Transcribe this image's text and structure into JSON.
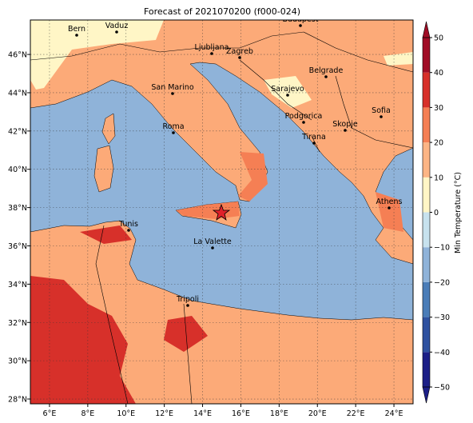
{
  "header": {
    "title": "Forecast of 2021070200 (f000-024)"
  },
  "map": {
    "xlim": [
      5,
      25
    ],
    "ylim": [
      27.75,
      47.8
    ],
    "xticks": [
      {
        "value": 6,
        "label": "6°E"
      },
      {
        "value": 8,
        "label": "8°E"
      },
      {
        "value": 10,
        "label": "10°E"
      },
      {
        "value": 12,
        "label": "12°E"
      },
      {
        "value": 14,
        "label": "14°E"
      },
      {
        "value": 16,
        "label": "16°E"
      },
      {
        "value": 18,
        "label": "18°E"
      },
      {
        "value": 20,
        "label": "20°E"
      },
      {
        "value": 22,
        "label": "22°E"
      },
      {
        "value": 24,
        "label": "24°E"
      }
    ],
    "yticks": [
      {
        "value": 28,
        "label": "28°N"
      },
      {
        "value": 30,
        "label": "30°N"
      },
      {
        "value": 32,
        "label": "32°N"
      },
      {
        "value": 34,
        "label": "34°N"
      },
      {
        "value": 36,
        "label": "36°N"
      },
      {
        "value": 38,
        "label": "38°N"
      },
      {
        "value": 40,
        "label": "40°N"
      },
      {
        "value": 42,
        "label": "42°N"
      },
      {
        "value": 44,
        "label": "44°N"
      },
      {
        "value": 46,
        "label": "46°N"
      }
    ],
    "grid": true,
    "cities": [
      "Bern",
      "Vaduz",
      "Budapest",
      "Ljubljana",
      "Zagreb",
      "Belgrade",
      "San Marino",
      "Sarajevo",
      "Sofia",
      "Podgorica",
      "Skopje",
      "Roma",
      "Tirana",
      "Athens",
      "Tunis",
      "La Valette",
      "Tripoli"
    ]
  },
  "colorbar": {
    "label": "Min Temperature (°C)",
    "lim": [
      -50,
      50
    ],
    "ticks": [
      {
        "value": -50,
        "label": "−50"
      },
      {
        "value": -40,
        "label": "−40"
      },
      {
        "value": -30,
        "label": "−30"
      },
      {
        "value": -20,
        "label": "−20"
      },
      {
        "value": -10,
        "label": "−10"
      },
      {
        "value": 0,
        "label": "0"
      },
      {
        "value": 10,
        "label": "10"
      },
      {
        "value": 20,
        "label": "20"
      },
      {
        "value": 30,
        "label": "30"
      },
      {
        "value": 40,
        "label": "40"
      },
      {
        "value": 50,
        "label": "50"
      }
    ],
    "colors": [
      "#1c1f87",
      "#2f52a0",
      "#4a7db8",
      "#8fb3d9",
      "#c7e2ee",
      "#fff6c6",
      "#fcb585",
      "#f57f54",
      "#d7302a",
      "#a00d26"
    ]
  }
}
